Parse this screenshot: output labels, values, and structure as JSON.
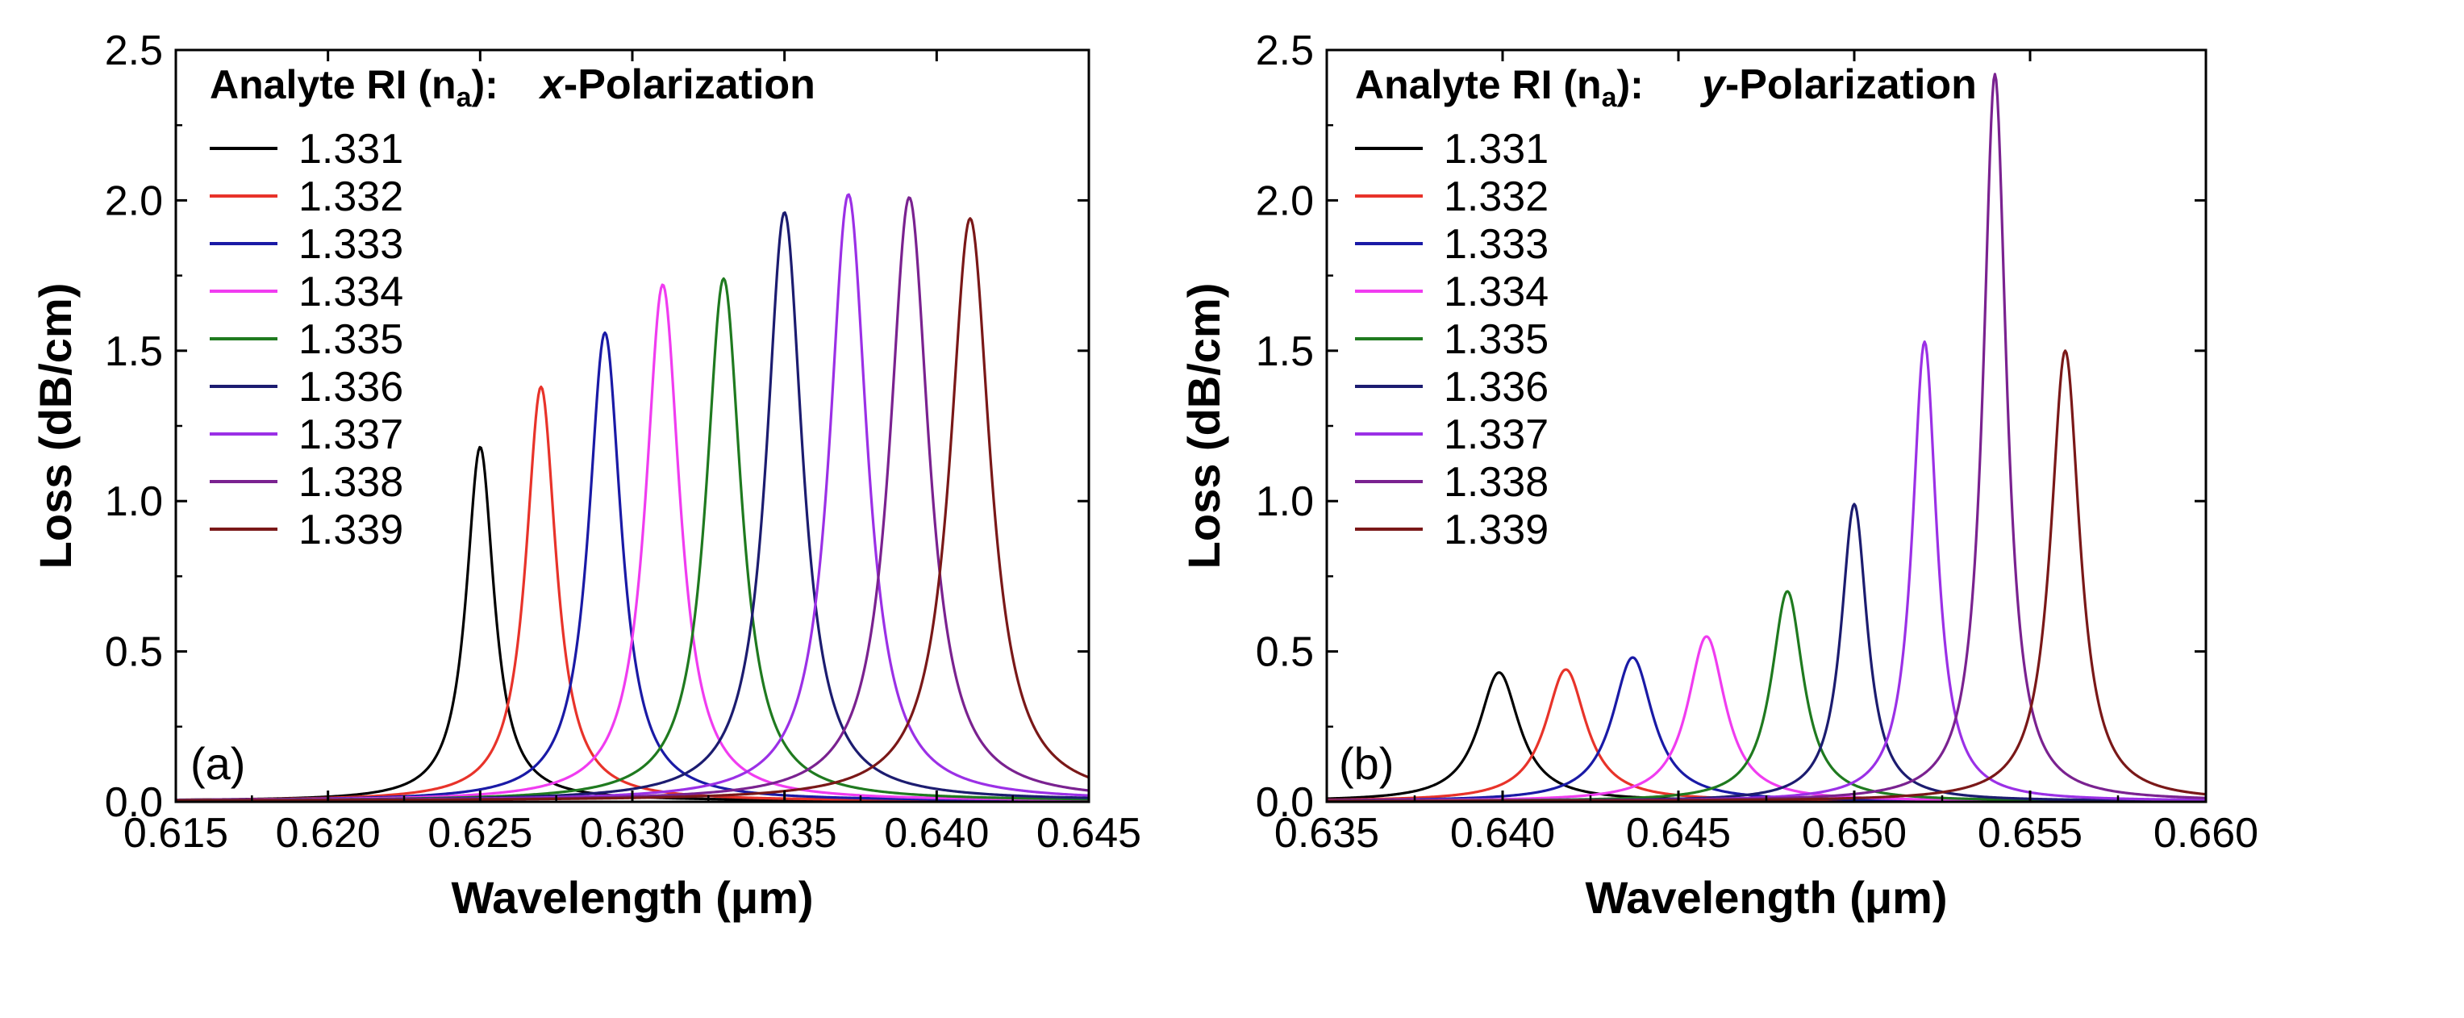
{
  "chart_data": [
    {
      "type": "line",
      "panel_label": "(a)",
      "polarization": {
        "axis": "x",
        "suffix": "-Polarization"
      },
      "xlabel": "Wavelength (μm)",
      "ylabel": "Loss (dB/cm)",
      "xlim": [
        0.615,
        0.645
      ],
      "ylim": [
        0.0,
        2.5
      ],
      "xticks": [
        0.615,
        0.62,
        0.625,
        0.63,
        0.635,
        0.64,
        0.645
      ],
      "xtick_labels": [
        "0.615",
        "0.620",
        "0.625",
        "0.630",
        "0.635",
        "0.640",
        "0.645"
      ],
      "yticks": [
        0.0,
        0.5,
        1.0,
        1.5,
        2.0,
        2.5
      ],
      "ytick_labels": [
        "0.0",
        "0.5",
        "1.0",
        "1.5",
        "2.0",
        "2.5"
      ],
      "legend": {
        "title": "Analyte RI (n",
        "title_sub": "a",
        "title_end": "):",
        "placement": "top-left"
      },
      "series": [
        {
          "name": "1.331",
          "color": "#000000",
          "peak_x": 0.625,
          "peak_y": 1.18,
          "hwhm": 0.00055,
          "baseline": 0.003
        },
        {
          "name": "1.332",
          "color": "#e8332a",
          "peak_x": 0.627,
          "peak_y": 1.38,
          "hwhm": 0.0006,
          "baseline": 0.003
        },
        {
          "name": "1.333",
          "color": "#1a1aa6",
          "peak_x": 0.6291,
          "peak_y": 1.56,
          "hwhm": 0.00065,
          "baseline": 0.003
        },
        {
          "name": "1.334",
          "color": "#f03cf0",
          "peak_x": 0.631,
          "peak_y": 1.72,
          "hwhm": 0.00068,
          "baseline": 0.003
        },
        {
          "name": "1.335",
          "color": "#1f7a1f",
          "peak_x": 0.633,
          "peak_y": 1.74,
          "hwhm": 0.0007,
          "baseline": 0.003
        },
        {
          "name": "1.336",
          "color": "#1c1c70",
          "peak_x": 0.635,
          "peak_y": 1.96,
          "hwhm": 0.00072,
          "baseline": 0.003
        },
        {
          "name": "1.337",
          "color": "#9b30e6",
          "peak_x": 0.6371,
          "peak_y": 2.02,
          "hwhm": 0.00075,
          "baseline": 0.003
        },
        {
          "name": "1.338",
          "color": "#7a2290",
          "peak_x": 0.6391,
          "peak_y": 2.01,
          "hwhm": 0.00078,
          "baseline": 0.003
        },
        {
          "name": "1.339",
          "color": "#7a1818",
          "peak_x": 0.6411,
          "peak_y": 1.94,
          "hwhm": 0.0008,
          "baseline": 0.003
        }
      ]
    },
    {
      "type": "line",
      "panel_label": "(b)",
      "polarization": {
        "axis": "y",
        "suffix": "-Polarization"
      },
      "xlabel": "Wavelength (μm)",
      "ylabel": "Loss (dB/cm)",
      "xlim": [
        0.635,
        0.66
      ],
      "ylim": [
        0.0,
        2.5
      ],
      "xticks": [
        0.635,
        0.64,
        0.645,
        0.65,
        0.655,
        0.66
      ],
      "xtick_labels": [
        "0.635",
        "0.640",
        "0.645",
        "0.650",
        "0.655",
        "0.660"
      ],
      "yticks": [
        0.0,
        0.5,
        1.0,
        1.5,
        2.0,
        2.5
      ],
      "ytick_labels": [
        "0.0",
        "0.5",
        "1.0",
        "1.5",
        "2.0",
        "2.5"
      ],
      "legend": {
        "title": "Analyte RI (n",
        "title_sub": "a",
        "title_end": "):",
        "placement": "top-left"
      },
      "series": [
        {
          "name": "1.331",
          "color": "#000000",
          "peak_x": 0.6399,
          "peak_y": 0.43,
          "hwhm": 0.0007,
          "baseline": 0.002
        },
        {
          "name": "1.332",
          "color": "#e8332a",
          "peak_x": 0.6418,
          "peak_y": 0.44,
          "hwhm": 0.0007,
          "baseline": 0.002
        },
        {
          "name": "1.333",
          "color": "#1a1aa6",
          "peak_x": 0.6437,
          "peak_y": 0.48,
          "hwhm": 0.0007,
          "baseline": 0.002
        },
        {
          "name": "1.334",
          "color": "#f03cf0",
          "peak_x": 0.6458,
          "peak_y": 0.55,
          "hwhm": 0.00065,
          "baseline": 0.002
        },
        {
          "name": "1.335",
          "color": "#1f7a1f",
          "peak_x": 0.6481,
          "peak_y": 0.7,
          "hwhm": 0.00055,
          "baseline": 0.002
        },
        {
          "name": "1.336",
          "color": "#1c1c70",
          "peak_x": 0.65,
          "peak_y": 0.99,
          "hwhm": 0.00045,
          "baseline": 0.002
        },
        {
          "name": "1.337",
          "color": "#9b30e6",
          "peak_x": 0.652,
          "peak_y": 1.53,
          "hwhm": 0.00042,
          "baseline": 0.002
        },
        {
          "name": "1.338",
          "color": "#7a2290",
          "peak_x": 0.654,
          "peak_y": 2.42,
          "hwhm": 0.0004,
          "baseline": 0.002
        },
        {
          "name": "1.339",
          "color": "#7a1818",
          "peak_x": 0.656,
          "peak_y": 1.5,
          "hwhm": 0.0005,
          "baseline": 0.002
        }
      ]
    }
  ]
}
